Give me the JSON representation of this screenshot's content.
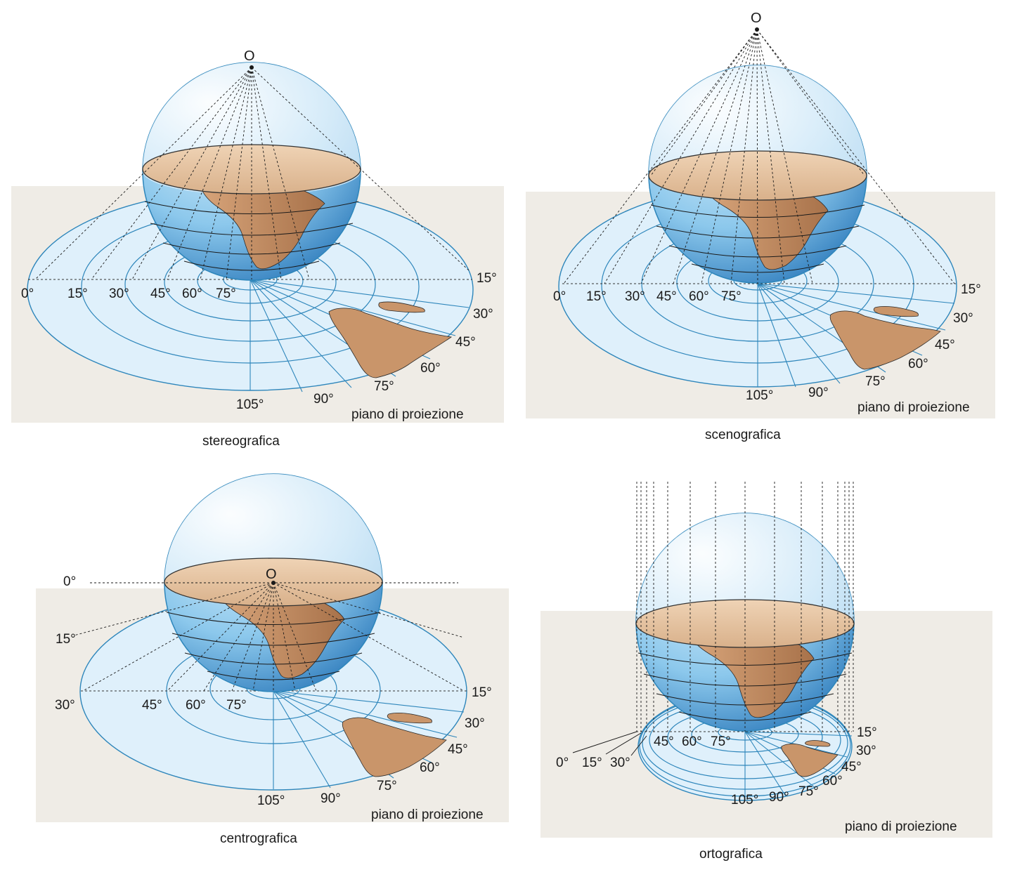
{
  "panels": [
    {
      "id": "stereografica",
      "caption": "stereografica",
      "plane_label": "piano di proiezione",
      "center_label": "O",
      "left_labels": [
        "0°",
        "15°",
        "30°",
        "45°",
        "60°",
        "75°"
      ],
      "right_labels": [
        "15°",
        "30°",
        "45°",
        "60°",
        "75°",
        "90°",
        "105°"
      ]
    },
    {
      "id": "scenografica",
      "caption": "scenografica",
      "plane_label": "piano di proiezione",
      "center_label": "O",
      "left_labels": [
        "0°",
        "15°",
        "30°",
        "45°",
        "60°",
        "75°"
      ],
      "right_labels": [
        "15°",
        "30°",
        "45°",
        "60°",
        "75°",
        "90°",
        "105°"
      ]
    },
    {
      "id": "centrografica",
      "caption": "centrografica",
      "plane_label": "piano di proiezione",
      "center_label": "O",
      "left_labels": [
        "0°",
        "15°",
        "30°",
        "45°",
        "60°",
        "75°"
      ],
      "right_labels": [
        "15°",
        "30°",
        "45°",
        "60°",
        "75°",
        "90°",
        "105°"
      ]
    },
    {
      "id": "ortografica",
      "caption": "ortografica",
      "plane_label": "piano di proiezione",
      "left_labels": [
        "0°",
        "15°",
        "30°",
        "45°",
        "60°",
        "75°"
      ],
      "right_labels": [
        "15°",
        "30°",
        "45°",
        "60°",
        "75°",
        "90°",
        "105°"
      ]
    }
  ],
  "colors": {
    "plane_bg": "#efece6",
    "disc_fill": "#dff0fb",
    "line_blue": "#2e86bb",
    "land": "#c9956a",
    "globe_dark": "#1f6fb4",
    "globe_light": "#cfe8f8"
  }
}
